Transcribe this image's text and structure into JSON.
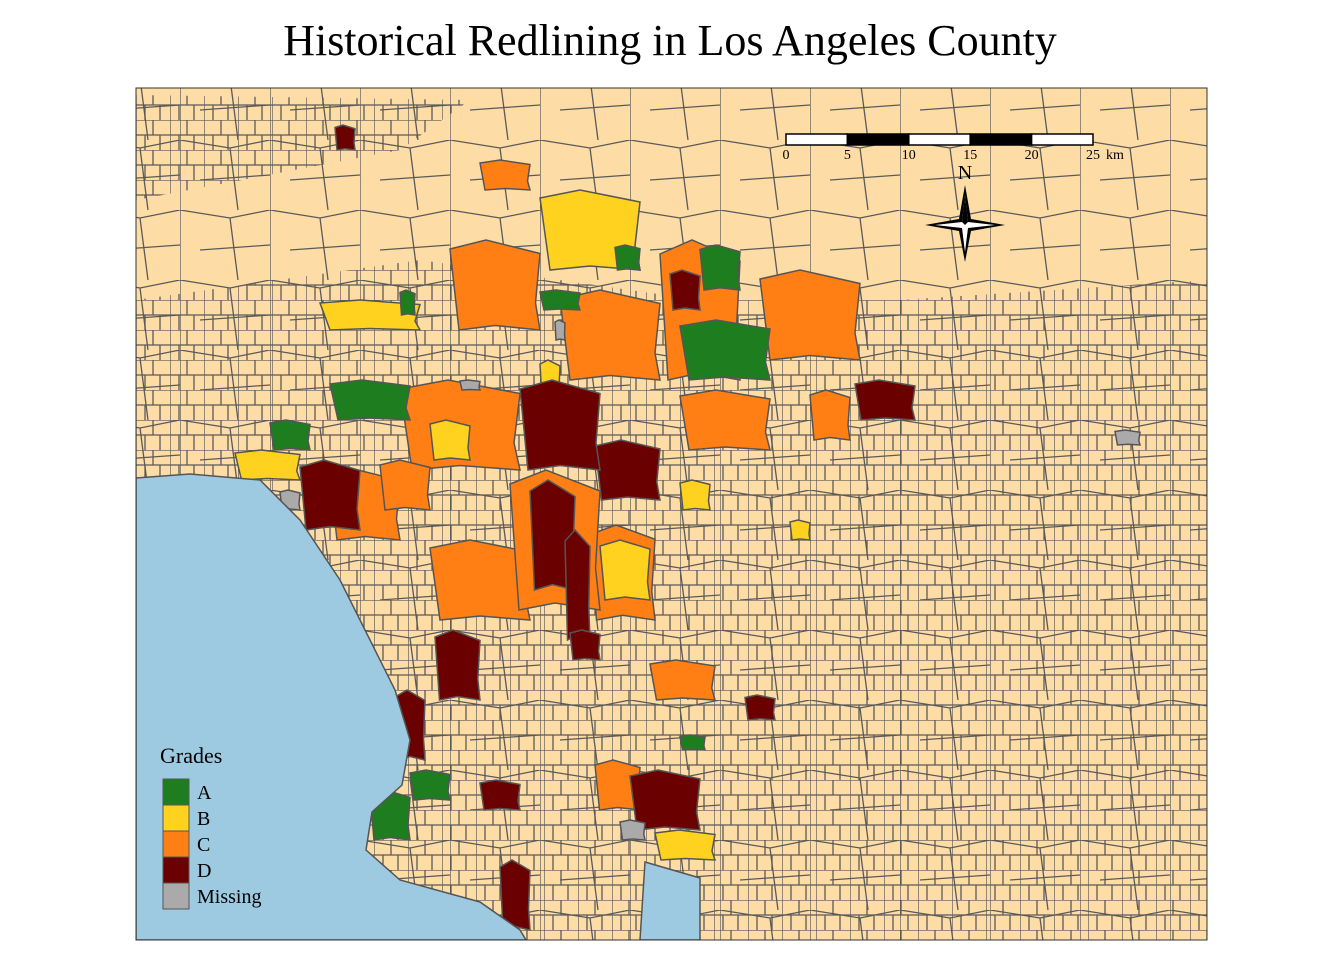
{
  "title": "Historical Redlining in Los Angeles County",
  "legend": {
    "title": "Grades",
    "items": [
      {
        "label": "A",
        "color": "#1e7d1e"
      },
      {
        "label": "B",
        "color": "#ffd21f"
      },
      {
        "label": "C",
        "color": "#ff7f14"
      },
      {
        "label": "D",
        "color": "#6b0000"
      },
      {
        "label": "Missing",
        "color": "#aaaaaa"
      }
    ]
  },
  "scale_bar": {
    "ticks": [
      0,
      5,
      10,
      15,
      20,
      25
    ],
    "unit": "km"
  },
  "north_arrow": {
    "label": "N"
  }
}
